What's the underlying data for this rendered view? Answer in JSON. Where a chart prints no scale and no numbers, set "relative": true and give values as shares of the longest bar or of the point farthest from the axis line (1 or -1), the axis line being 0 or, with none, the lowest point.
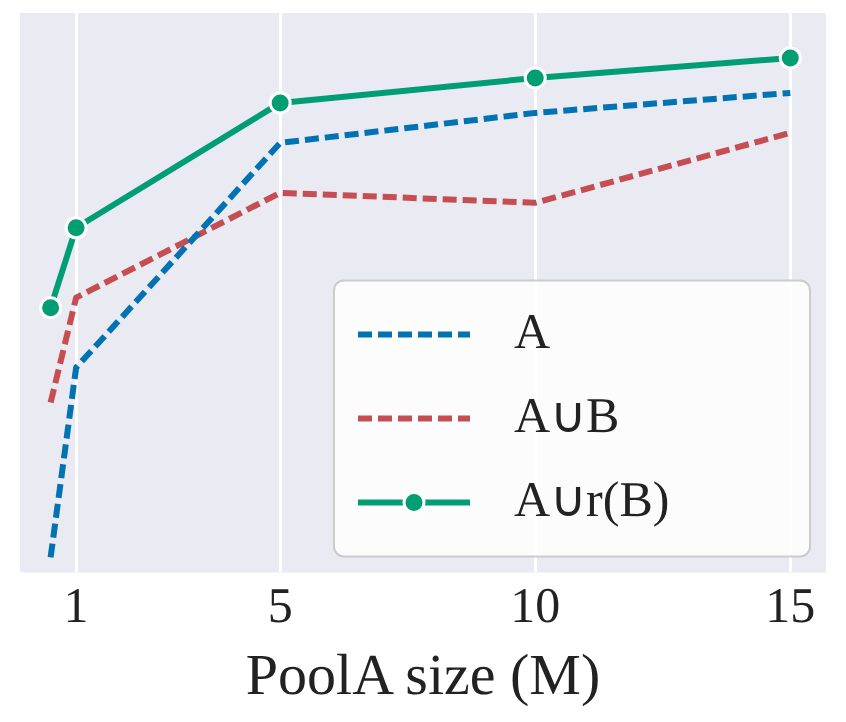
{
  "chart_data": {
    "type": "line",
    "xlabel": "PoolA size (M)",
    "relative": true,
    "x": [
      0.5,
      1,
      5,
      10,
      15
    ],
    "xlim": [
      -0.1,
      15.7
    ],
    "xticks": [
      1,
      5,
      10,
      15
    ],
    "series": [
      {
        "name": "A",
        "color": "#0173b2",
        "values": [
          0,
          0.38,
          0.83,
          0.89,
          0.93
        ],
        "line_style": "dashed",
        "marker": "none"
      },
      {
        "name": "A∪B",
        "color": "#c44e52",
        "values": [
          0.31,
          0.52,
          0.73,
          0.71,
          0.85
        ],
        "line_style": "dashed",
        "marker": "none"
      },
      {
        "name": "A∪r(B)",
        "color": "#029e73",
        "values": [
          0.5,
          0.66,
          0.91,
          0.96,
          1.0
        ],
        "line_style": "solid",
        "marker": "circle"
      }
    ],
    "grid": "x",
    "legend": "bottom right"
  }
}
